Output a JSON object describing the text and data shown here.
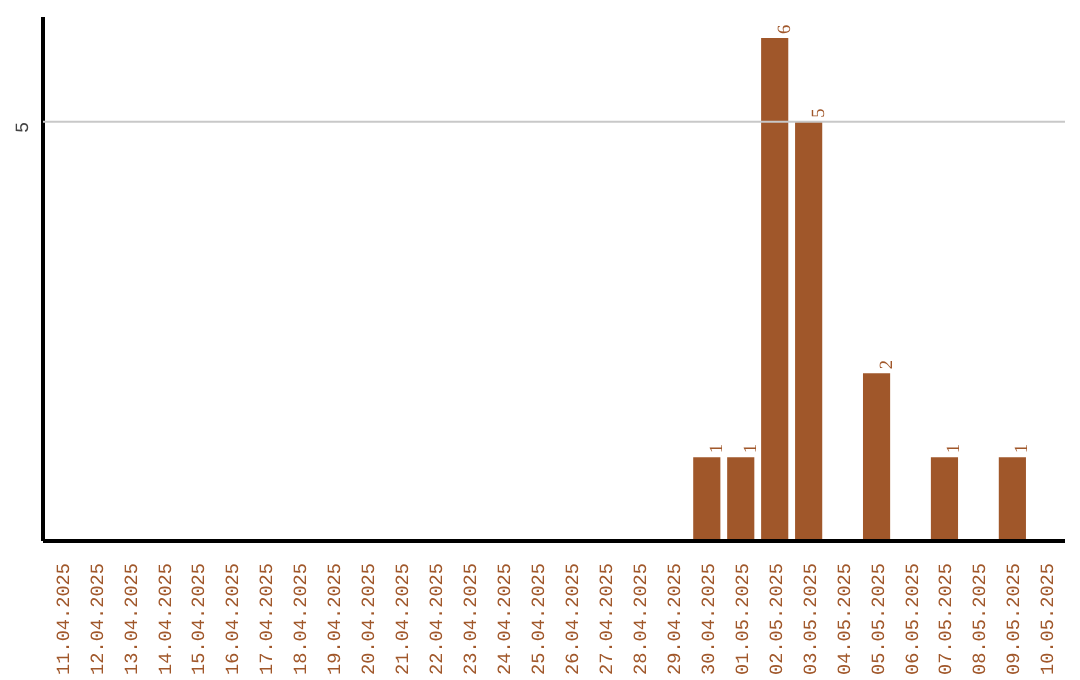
{
  "chart_data": {
    "type": "bar",
    "categories": [
      "11.04.2025",
      "12.04.2025",
      "13.04.2025",
      "14.04.2025",
      "15.04.2025",
      "16.04.2025",
      "17.04.2025",
      "18.04.2025",
      "19.04.2025",
      "20.04.2025",
      "21.04.2025",
      "22.04.2025",
      "23.04.2025",
      "24.04.2025",
      "25.04.2025",
      "26.04.2025",
      "27.04.2025",
      "28.04.2025",
      "29.04.2025",
      "30.04.2025",
      "01.05.2025",
      "02.05.2025",
      "03.05.2025",
      "04.05.2025",
      "05.05.2025",
      "06.05.2025",
      "07.05.2025",
      "08.05.2025",
      "09.05.2025",
      "10.05.2025"
    ],
    "values": [
      null,
      null,
      null,
      null,
      null,
      null,
      null,
      null,
      null,
      null,
      null,
      null,
      null,
      null,
      null,
      null,
      null,
      null,
      null,
      1,
      1,
      6,
      5,
      null,
      2,
      null,
      1,
      null,
      1,
      null
    ],
    "data_labels": true,
    "color": "#a0572a",
    "ylim": [
      0,
      6.25
    ],
    "ref_lines": [
      {
        "axis": "y",
        "value": 5,
        "label": "5",
        "color": "#c8c8c8"
      }
    ]
  }
}
